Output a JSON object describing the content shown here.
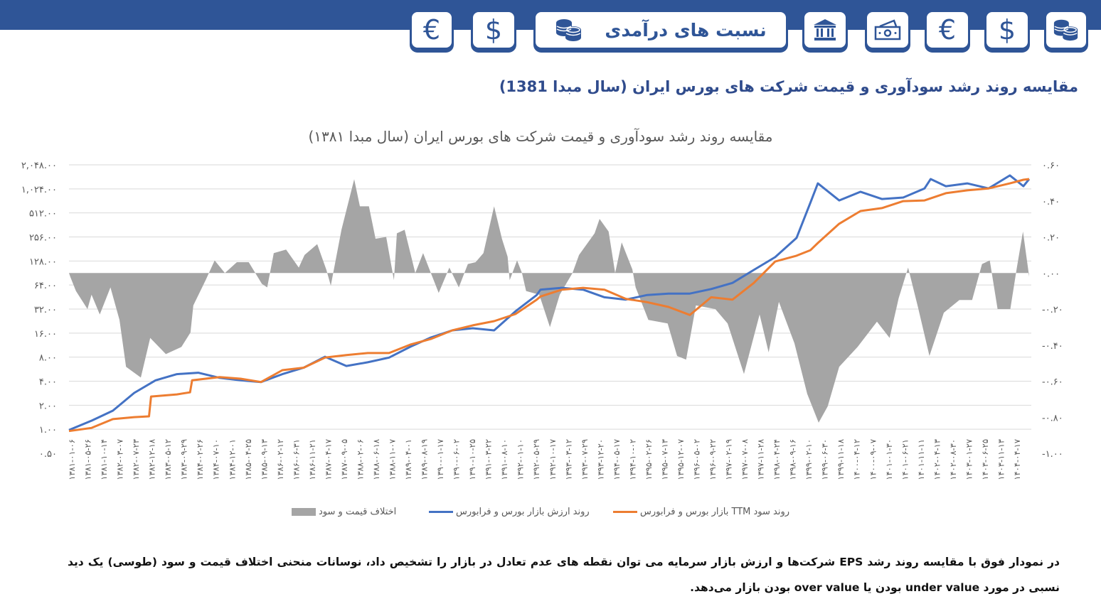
{
  "nav": {
    "tabs": [
      {
        "icon": "euro-icon",
        "symbol": "€"
      },
      {
        "icon": "dollar-icon",
        "symbol": "$"
      },
      {
        "icon": "coins-icon",
        "label": "نسبت های درآمدی"
      },
      {
        "icon": "bank-icon"
      },
      {
        "icon": "cash-icon"
      },
      {
        "icon": "euro-icon",
        "symbol": "€"
      },
      {
        "icon": "dollar-icon",
        "symbol": "$"
      },
      {
        "icon": "coins-icon"
      }
    ]
  },
  "page": {
    "heading": "مقایسه روند رشد سودآوری و قیمت شرکت های بورس ایران (سال مبدا 1381)",
    "paragraph": "در نمودار فوق با مقایسه روند رشد EPS شرکت‌ها و ارزش بازار سرمایه می توان نقطه های عدم تعادل در بازار را تشخیص داد، نوسانات منحنی اختلاف قیمت و سود (طوسی) یک دید نسبی در مورد under value بودن یا over value بودن بازار می‌دهد."
  },
  "colors": {
    "brand": "#2F5597",
    "market_value": "#4472C4",
    "eps": "#ED7D31",
    "gap": "#A5A5A5",
    "grid": "#D9D9D9"
  },
  "chart_data": {
    "type": "line",
    "title": "مقایسه روند رشد سودآوری و قیمت شرکت های بورس ایران (سال مبدا ۱۳۸۱)",
    "xlabel": "",
    "x_unit": "solar hijri year (decimal)",
    "xlim": [
      1381.0,
      1404.4
    ],
    "y_left": {
      "scale": "log2",
      "ylim": [
        0.5,
        2048
      ],
      "ticks": [
        2048,
        1024,
        512,
        256,
        128,
        64,
        32,
        16,
        8,
        4,
        2,
        1,
        0.5
      ],
      "tick_labels": [
        "۲,۰۴۸.۰۰",
        "۱,۰۲۴.۰۰",
        "۵۱۲.۰۰",
        "۲۵۶.۰۰",
        "۱۲۸.۰۰",
        "۶۴.۰۰",
        "۳۲.۰۰",
        "۱۶.۰۰",
        "۸.۰۰",
        "۴.۰۰",
        "۲.۰۰",
        "۱.۰۰",
        "۰.۵۰"
      ]
    },
    "y_right": {
      "scale": "linear",
      "ylim": [
        -1.0,
        0.6
      ],
      "ticks": [
        0.6,
        0.4,
        0.2,
        0.0,
        -0.2,
        -0.4,
        -0.6,
        -0.8,
        -1.0
      ],
      "tick_labels": [
        "۰.۶۰",
        "۰.۴۰",
        "۰.۲۰",
        "۰.۰۰",
        "-۰.۲۰",
        "-۰.۴۰",
        "-۰.۶۰",
        "-۰.۸۰",
        "-۱.۰۰"
      ]
    },
    "x_tick_labels": [
      "۱۳۸۱-۰۱-۰۶",
      "۱۳۸۱-۰۵-۲۶",
      "۱۳۸۱-۱۰-۱۴",
      "۱۳۸۲-۰۳-۰۷",
      "۱۳۸۲-۰۷-۲۳",
      "۱۳۸۲-۱۲-۱۸",
      "۱۳۸۳-۰۵-۱۲",
      "۱۳۸۳-۰۹-۲۹",
      "۱۳۸۴-۰۲-۲۶",
      "۱۳۸۴-۰۷-۱۰",
      "۱۳۸۴-۱۲-۰۱",
      "۱۳۸۵-۰۴-۲۵",
      "۱۳۸۵-۰۹-۱۳",
      "۱۳۸۶-۰۲-۱۲",
      "۱۳۸۶-۰۶-۳۱",
      "۱۳۸۶-۱۱-۲۱",
      "۱۳۸۷-۰۴-۱۷",
      "۱۳۸۷-۰۹-۰۵",
      "۱۳۸۸-۰۲-۰۶",
      "۱۳۸۸-۰۶-۱۸",
      "۱۳۸۸-۱۱-۰۷",
      "۱۳۸۹-۰۴-۰۱",
      "۱۳۸۹-۰۸-۱۹",
      "۱۳۹۰-۰۱-۱۷",
      "۱۳۹۰-۰۶-۰۲",
      "۱۳۹۰-۱۰-۲۵",
      "۱۳۹۱-۰۳-۲۲",
      "۱۳۹۱-۰۸-۱۰",
      "۱۳۹۲-۰۱-۱۰",
      "۱۳۹۲-۰۵-۲۹",
      "۱۳۹۲-۱۰-۱۷",
      "۱۳۹۳-۰۳-۱۲",
      "۱۳۹۳-۰۷-۲۹",
      "۱۳۹۳-۱۲-۲۰",
      "۱۳۹۴-۰۵-۱۷",
      "۱۳۹۴-۱۰-۰۲",
      "۱۳۹۵-۰۲-۲۶",
      "۱۳۹۵-۰۷-۱۳",
      "۱۳۹۵-۱۲-۰۷",
      "۱۳۹۶-۰۵-۰۲",
      "۱۳۹۶-۰۹-۲۲",
      "۱۳۹۷-۰۲-۱۹",
      "۱۳۹۷-۰۷-۰۸",
      "۱۳۹۷-۱۱-۲۸",
      "۱۳۹۸-۰۴-۲۴",
      "۱۳۹۸-۰۹-۱۶",
      "۱۳۹۹-۰۲-۱۰",
      "۱۳۹۹-۰۶-۳۰",
      "۱۳۹۹-۱۱-۱۸",
      "۱۴۰۰-۰۴-۱۲",
      "۱۴۰۰-۰۹-۰۷",
      "۱۴۰۱-۰۱-۳۰",
      "۱۴۰۱-۰۶-۲۱",
      "۱۴۰۱-۱۱-۱۱",
      "۱۴۰۲-۰۴-۱۳",
      "۱۴۰۲-۰۸-۳۰",
      "۱۴۰۳-۰۱-۲۷",
      "۱۴۰۳-۰۶-۲۵",
      "۱۴۰۳-۱۱-۱۳",
      "۱۴۰۴-۰۴-۱۷"
    ],
    "grid": true,
    "legend_position": "bottom",
    "series": [
      {
        "name": "روند سود TTM بازار بورس و فرابورس",
        "axis": "left",
        "kind": "line",
        "color": "#ED7D31",
        "points": [
          [
            1381.0,
            0.95
          ],
          [
            1381.55,
            1.04
          ],
          [
            1382.07,
            1.34
          ],
          [
            1382.59,
            1.42
          ],
          [
            1382.95,
            1.45
          ],
          [
            1383.0,
            2.57
          ],
          [
            1383.63,
            2.73
          ],
          [
            1383.95,
            2.9
          ],
          [
            1384.0,
            4.1
          ],
          [
            1384.67,
            4.5
          ],
          [
            1385.18,
            4.3
          ],
          [
            1385.68,
            3.9
          ],
          [
            1386.2,
            5.5
          ],
          [
            1386.72,
            5.9
          ],
          [
            1387.24,
            7.9
          ],
          [
            1387.76,
            8.5
          ],
          [
            1388.28,
            9.0
          ],
          [
            1388.8,
            9.0
          ],
          [
            1389.32,
            11.5
          ],
          [
            1389.82,
            13.5
          ],
          [
            1390.34,
            17.3
          ],
          [
            1390.84,
            20
          ],
          [
            1391.36,
            22.6
          ],
          [
            1391.88,
            27.7
          ],
          [
            1392.4,
            42
          ],
          [
            1392.49,
            46
          ],
          [
            1393.01,
            56
          ],
          [
            1393.53,
            59
          ],
          [
            1394.05,
            56
          ],
          [
            1394.57,
            43
          ],
          [
            1395.09,
            39
          ],
          [
            1395.61,
            34
          ],
          [
            1396.13,
            27
          ],
          [
            1396.65,
            45
          ],
          [
            1397.17,
            42
          ],
          [
            1397.69,
            68
          ],
          [
            1398.21,
            126
          ],
          [
            1398.73,
            149
          ],
          [
            1399.07,
            175
          ],
          [
            1399.25,
            215
          ],
          [
            1399.77,
            375
          ],
          [
            1400.29,
            541
          ],
          [
            1400.81,
            588
          ],
          [
            1401.33,
            719
          ],
          [
            1401.85,
            734
          ],
          [
            1402.37,
            904
          ],
          [
            1402.89,
            982
          ],
          [
            1403.41,
            1038
          ],
          [
            1403.93,
            1200
          ],
          [
            1404.26,
            1333
          ],
          [
            1404.4,
            1360
          ]
        ]
      },
      {
        "name": "روند ارزش بازار بورس و فرابورس",
        "axis": "left",
        "kind": "line",
        "color": "#4472C4",
        "points": [
          [
            1381.0,
            0.98
          ],
          [
            1381.55,
            1.28
          ],
          [
            1382.07,
            1.71
          ],
          [
            1382.59,
            2.85
          ],
          [
            1383.11,
            4.1
          ],
          [
            1383.63,
            4.9
          ],
          [
            1384.15,
            5.1
          ],
          [
            1384.67,
            4.4
          ],
          [
            1385.18,
            4.1
          ],
          [
            1385.68,
            3.9
          ],
          [
            1386.2,
            4.9
          ],
          [
            1386.72,
            5.9
          ],
          [
            1387.24,
            8.1
          ],
          [
            1387.76,
            6.2
          ],
          [
            1388.28,
            6.9
          ],
          [
            1388.8,
            7.9
          ],
          [
            1389.32,
            10.8
          ],
          [
            1389.82,
            14.1
          ],
          [
            1390.34,
            17.3
          ],
          [
            1390.84,
            18.4
          ],
          [
            1391.36,
            17.3
          ],
          [
            1391.88,
            30
          ],
          [
            1392.4,
            48
          ],
          [
            1392.49,
            56
          ],
          [
            1393.01,
            59
          ],
          [
            1393.53,
            56
          ],
          [
            1394.05,
            45
          ],
          [
            1394.57,
            42
          ],
          [
            1395.09,
            48
          ],
          [
            1395.61,
            50
          ],
          [
            1396.13,
            50
          ],
          [
            1396.65,
            57
          ],
          [
            1397.17,
            68
          ],
          [
            1397.69,
            99
          ],
          [
            1398.21,
            143
          ],
          [
            1398.73,
            249
          ],
          [
            1399.07,
            690
          ],
          [
            1399.25,
            1200
          ],
          [
            1399.77,
            734
          ],
          [
            1400.29,
            942
          ],
          [
            1400.81,
            765
          ],
          [
            1401.33,
            798
          ],
          [
            1401.85,
            1038
          ],
          [
            1402.0,
            1360
          ],
          [
            1402.37,
            1105
          ],
          [
            1402.89,
            1200
          ],
          [
            1403.41,
            1038
          ],
          [
            1403.93,
            1510
          ],
          [
            1404.26,
            1105
          ],
          [
            1404.4,
            1360
          ]
        ]
      },
      {
        "name": "اختلاف قیمت و سود",
        "axis": "right",
        "kind": "area",
        "color": "#A5A5A5",
        "points": [
          [
            1381.0,
            0
          ],
          [
            1381.03,
            -0.02
          ],
          [
            1381.17,
            -0.1
          ],
          [
            1381.45,
            -0.2
          ],
          [
            1381.55,
            -0.12
          ],
          [
            1381.75,
            -0.23
          ],
          [
            1382.01,
            -0.08
          ],
          [
            1382.23,
            -0.26
          ],
          [
            1382.39,
            -0.52
          ],
          [
            1382.75,
            -0.58
          ],
          [
            1382.98,
            -0.36
          ],
          [
            1383.36,
            -0.45
          ],
          [
            1383.74,
            -0.41
          ],
          [
            1383.96,
            -0.33
          ],
          [
            1384.03,
            -0.18
          ],
          [
            1384.33,
            -0.04
          ],
          [
            1384.55,
            0.07
          ],
          [
            1384.8,
            0
          ],
          [
            1385.09,
            0.06
          ],
          [
            1385.38,
            0.06
          ],
          [
            1385.7,
            -0.06
          ],
          [
            1385.83,
            -0.08
          ],
          [
            1385.99,
            0.11
          ],
          [
            1386.29,
            0.13
          ],
          [
            1386.6,
            0.03
          ],
          [
            1386.74,
            0.1
          ],
          [
            1387.05,
            0.16
          ],
          [
            1387.27,
            0.02
          ],
          [
            1387.38,
            -0.07
          ],
          [
            1387.64,
            0.24
          ],
          [
            1387.95,
            0.52
          ],
          [
            1388.09,
            0.37
          ],
          [
            1388.31,
            0.37
          ],
          [
            1388.47,
            0.19
          ],
          [
            1388.73,
            0.2
          ],
          [
            1388.92,
            -0.04
          ],
          [
            1388.99,
            0.22
          ],
          [
            1389.18,
            0.24
          ],
          [
            1389.44,
            0
          ],
          [
            1389.63,
            0.11
          ],
          [
            1389.82,
            0
          ],
          [
            1390.01,
            -0.11
          ],
          [
            1390.27,
            0.03
          ],
          [
            1390.5,
            -0.08
          ],
          [
            1390.72,
            0.05
          ],
          [
            1390.91,
            0.06
          ],
          [
            1391.1,
            0.11
          ],
          [
            1391.36,
            0.37
          ],
          [
            1391.55,
            0.19
          ],
          [
            1391.69,
            0.09
          ],
          [
            1391.74,
            -0.04
          ],
          [
            1391.92,
            0.07
          ],
          [
            1392.04,
            0
          ],
          [
            1392.14,
            -0.1
          ],
          [
            1392.46,
            -0.12
          ],
          [
            1392.72,
            -0.3
          ],
          [
            1392.96,
            -0.12
          ],
          [
            1393.27,
            0
          ],
          [
            1393.43,
            0.1
          ],
          [
            1393.81,
            0.22
          ],
          [
            1393.93,
            0.3
          ],
          [
            1394.15,
            0.23
          ],
          [
            1394.31,
            0
          ],
          [
            1394.47,
            0.17
          ],
          [
            1394.73,
            0.02
          ],
          [
            1394.81,
            -0.08
          ],
          [
            1395.12,
            -0.26
          ],
          [
            1395.59,
            -0.28
          ],
          [
            1395.82,
            -0.46
          ],
          [
            1396.04,
            -0.48
          ],
          [
            1396.28,
            -0.18
          ],
          [
            1396.75,
            -0.2
          ],
          [
            1397.05,
            -0.28
          ],
          [
            1397.45,
            -0.56
          ],
          [
            1397.83,
            -0.23
          ],
          [
            1398.05,
            -0.44
          ],
          [
            1398.3,
            -0.16
          ],
          [
            1398.68,
            -0.39
          ],
          [
            1398.99,
            -0.67
          ],
          [
            1399.27,
            -0.83
          ],
          [
            1399.49,
            -0.74
          ],
          [
            1399.77,
            -0.52
          ],
          [
            1400.22,
            -0.41
          ],
          [
            1400.69,
            -0.27
          ],
          [
            1401.0,
            -0.36
          ],
          [
            1401.22,
            -0.14
          ],
          [
            1401.45,
            0.03
          ],
          [
            1401.69,
            -0.19
          ],
          [
            1401.97,
            -0.46
          ],
          [
            1402.32,
            -0.22
          ],
          [
            1402.7,
            -0.15
          ],
          [
            1403.01,
            -0.15
          ],
          [
            1403.25,
            0.05
          ],
          [
            1403.44,
            0.07
          ],
          [
            1403.63,
            -0.2
          ],
          [
            1403.94,
            -0.2
          ],
          [
            1404.1,
            0.03
          ],
          [
            1404.25,
            0.23
          ],
          [
            1404.4,
            -0.02
          ]
        ]
      }
    ]
  }
}
